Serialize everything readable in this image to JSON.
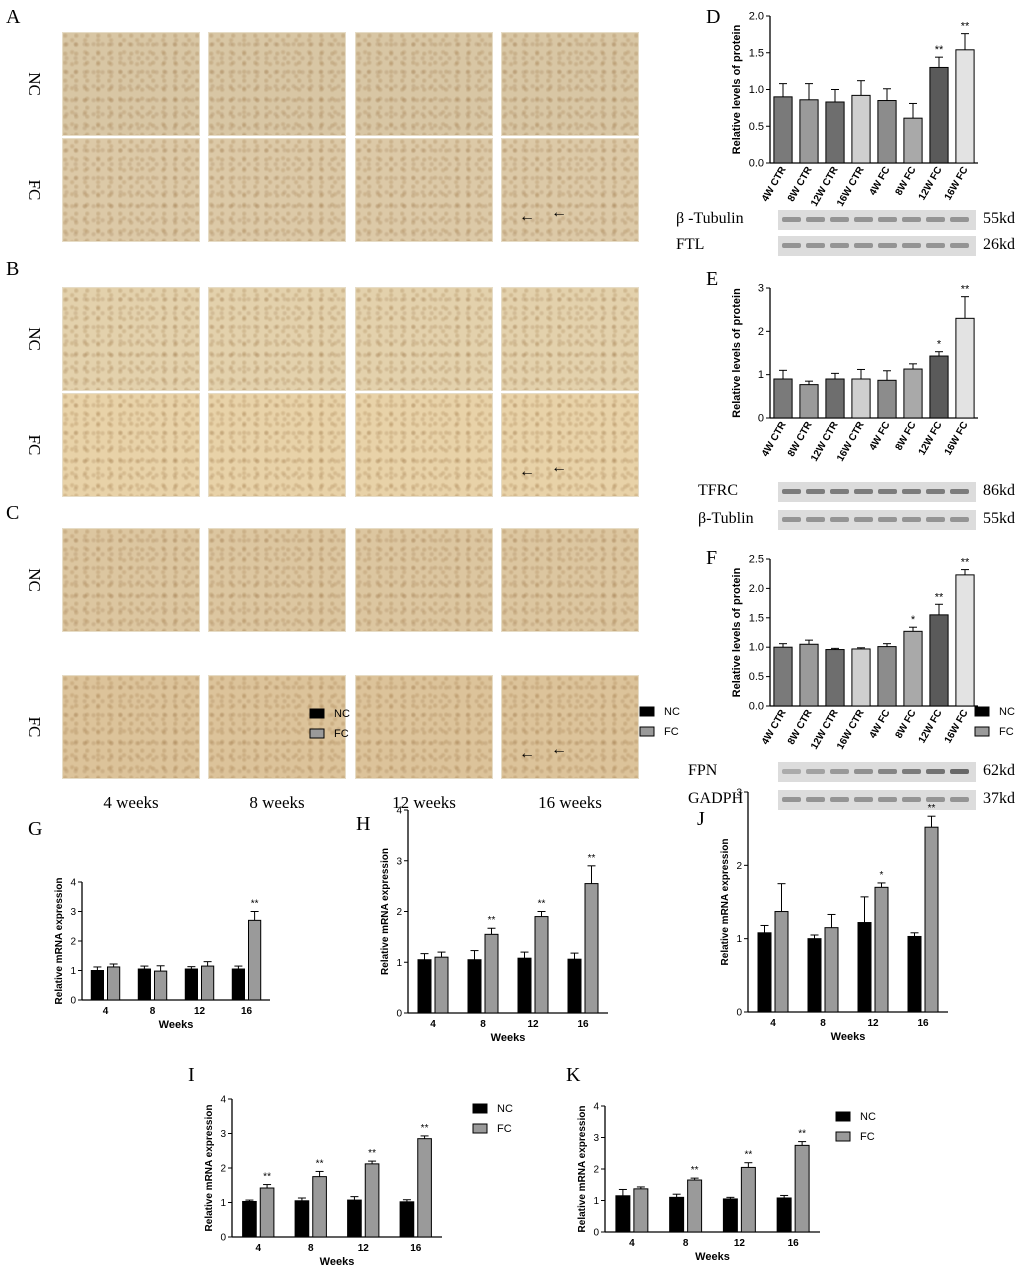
{
  "panel_letters": {
    "A": "A",
    "B": "B",
    "C": "C",
    "D": "D",
    "E": "E",
    "F": "F",
    "G": "G",
    "H": "H",
    "J": "J",
    "I": "I",
    "K": "K"
  },
  "histology": {
    "row_labels": [
      "NC",
      "FC"
    ],
    "col_labels": [
      "4 weeks",
      "8 weeks",
      "12 weeks",
      "16 weeks"
    ],
    "panels": [
      {
        "id": "A",
        "nc_color": "#d8c6a4",
        "fc_color": "#dcc9a7"
      },
      {
        "id": "B",
        "nc_color": "#e3d1ac",
        "fc_color": "#e8d2a8"
      },
      {
        "id": "C",
        "nc_color": "#dcc6a0",
        "fc_color": "#dcc39a"
      }
    ]
  },
  "blots": {
    "D": {
      "rows": [
        {
          "name": "β -Tubulin",
          "kd": "55kd"
        },
        {
          "name": "FTL",
          "kd": "26kd"
        }
      ]
    },
    "E": {
      "rows": [
        {
          "name": "TFRC",
          "kd": "86kd"
        },
        {
          "name": "β-Tublin",
          "kd": "55kd"
        }
      ]
    },
    "F": {
      "rows": [
        {
          "name": "FPN",
          "kd": "62kd"
        },
        {
          "name": "GADPH",
          "kd": "37kd"
        }
      ]
    }
  },
  "chart_data": [
    {
      "id": "D",
      "type": "bar",
      "ylabel": "Relative levels of protein",
      "ylim": [
        0,
        2.0
      ],
      "yticks": [
        "0.0",
        "0.5",
        "1.0",
        "1.5",
        "2.0"
      ],
      "categories": [
        "4W CTR",
        "8W CTR",
        "12W CTR",
        "16W CTR",
        "4W FC",
        "8W FC",
        "12W FC",
        "16W FC"
      ],
      "values": [
        0.9,
        0.86,
        0.83,
        0.92,
        0.85,
        0.61,
        1.3,
        1.54
      ],
      "errors": [
        0.18,
        0.22,
        0.17,
        0.2,
        0.16,
        0.2,
        0.14,
        0.22
      ],
      "marks": [
        "",
        "",
        "",
        "",
        "",
        "",
        "**",
        "**"
      ],
      "colors": [
        "#7a7a7a",
        "#9a9a9a",
        "#6e6e6e",
        "#cfcfcf",
        "#8c8c8c",
        "#a9a9a9",
        "#5a5a5a",
        "#e3e3e3"
      ]
    },
    {
      "id": "E",
      "type": "bar",
      "ylabel": "Relative levels of protein",
      "ylim": [
        0,
        3
      ],
      "yticks": [
        "0",
        "1",
        "2",
        "3"
      ],
      "categories": [
        "4W CTR",
        "8W CTR",
        "12W CTR",
        "16W CTR",
        "4W FC",
        "8W FC",
        "12W FC",
        "16W FC"
      ],
      "values": [
        0.9,
        0.77,
        0.9,
        0.9,
        0.87,
        1.13,
        1.43,
        2.3
      ],
      "errors": [
        0.2,
        0.08,
        0.13,
        0.22,
        0.22,
        0.12,
        0.1,
        0.5
      ],
      "marks": [
        "",
        "",
        "",
        "",
        "",
        "",
        "*",
        "**"
      ],
      "colors": [
        "#7a7a7a",
        "#9a9a9a",
        "#6e6e6e",
        "#cfcfcf",
        "#8c8c8c",
        "#a9a9a9",
        "#5a5a5a",
        "#e3e3e3"
      ]
    },
    {
      "id": "F",
      "type": "bar",
      "ylabel": "Relative levels of protein",
      "ylim": [
        0,
        2.5
      ],
      "yticks": [
        "0.0",
        "0.5",
        "1.0",
        "1.5",
        "2.0",
        "2.5"
      ],
      "categories": [
        "4W CTR",
        "8W CTR",
        "12W CTR",
        "16W CTR",
        "4W FC",
        "8W FC",
        "12W FC",
        "16W FC"
      ],
      "values": [
        1.0,
        1.05,
        0.96,
        0.97,
        1.01,
        1.27,
        1.55,
        2.23
      ],
      "errors": [
        0.06,
        0.07,
        0.02,
        0.02,
        0.05,
        0.07,
        0.18,
        0.09
      ],
      "marks": [
        "",
        "",
        "",
        "",
        "",
        "*",
        "**",
        "**"
      ],
      "colors": [
        "#7a7a7a",
        "#9a9a9a",
        "#6e6e6e",
        "#cfcfcf",
        "#8c8c8c",
        "#a9a9a9",
        "#5a5a5a",
        "#e3e3e3"
      ]
    },
    {
      "id": "G",
      "type": "bar",
      "xlabel": "Weeks",
      "ylabel": "Relative mRNA expression",
      "ylim": [
        0,
        4
      ],
      "yticks": [
        "0",
        "1",
        "2",
        "3",
        "4"
      ],
      "categories": [
        "4",
        "8",
        "12",
        "16"
      ],
      "series": [
        {
          "name": "NC",
          "values": [
            1.0,
            1.05,
            1.05,
            1.05
          ],
          "errors": [
            0.12,
            0.1,
            0.08,
            0.1
          ]
        },
        {
          "name": "FC",
          "values": [
            1.12,
            0.98,
            1.15,
            2.7
          ],
          "errors": [
            0.1,
            0.18,
            0.15,
            0.3
          ]
        }
      ],
      "marks": [
        "",
        "",
        "",
        "**"
      ]
    },
    {
      "id": "H",
      "type": "bar",
      "xlabel": "Weeks",
      "ylabel": "Relative mRNA expression",
      "ylim": [
        0,
        4
      ],
      "yticks": [
        "0",
        "1",
        "2",
        "3",
        "4"
      ],
      "categories": [
        "4",
        "8",
        "12",
        "16"
      ],
      "series": [
        {
          "name": "NC",
          "values": [
            1.05,
            1.05,
            1.08,
            1.06
          ],
          "errors": [
            0.12,
            0.18,
            0.12,
            0.12
          ]
        },
        {
          "name": "FC",
          "values": [
            1.1,
            1.55,
            1.9,
            2.55
          ],
          "errors": [
            0.1,
            0.12,
            0.1,
            0.35
          ]
        }
      ],
      "marks": [
        "",
        "**",
        "**",
        "**"
      ]
    },
    {
      "id": "J",
      "type": "bar",
      "xlabel": "Weeks",
      "ylabel": "Relative mRNA expression",
      "ylim": [
        0,
        3
      ],
      "yticks": [
        "0",
        "1",
        "2",
        "3"
      ],
      "categories": [
        "4",
        "8",
        "12",
        "16"
      ],
      "series": [
        {
          "name": "NC",
          "values": [
            1.08,
            1.0,
            1.22,
            1.03
          ],
          "errors": [
            0.1,
            0.05,
            0.35,
            0.05
          ]
        },
        {
          "name": "FC",
          "values": [
            1.37,
            1.15,
            1.7,
            2.52
          ],
          "errors": [
            0.38,
            0.18,
            0.06,
            0.15
          ]
        }
      ],
      "marks": [
        "",
        "",
        "*",
        "**"
      ]
    },
    {
      "id": "I",
      "type": "bar",
      "xlabel": "Weeks",
      "ylabel": "Relative mRNA expression",
      "ylim": [
        0,
        4
      ],
      "yticks": [
        "0",
        "1",
        "2",
        "3",
        "4"
      ],
      "categories": [
        "4",
        "8",
        "12",
        "16"
      ],
      "series": [
        {
          "name": "NC",
          "values": [
            1.03,
            1.05,
            1.07,
            1.02
          ],
          "errors": [
            0.04,
            0.08,
            0.1,
            0.06
          ]
        },
        {
          "name": "FC",
          "values": [
            1.42,
            1.75,
            2.12,
            2.85
          ],
          "errors": [
            0.1,
            0.15,
            0.08,
            0.08
          ]
        }
      ],
      "marks": [
        "**",
        "**",
        "**",
        "**"
      ]
    },
    {
      "id": "K",
      "type": "bar",
      "xlabel": "Weeks",
      "ylabel": "Relative mRNA expression",
      "ylim": [
        0,
        4
      ],
      "yticks": [
        "0",
        "1",
        "2",
        "3",
        "4"
      ],
      "categories": [
        "4",
        "8",
        "12",
        "16"
      ],
      "series": [
        {
          "name": "NC",
          "values": [
            1.15,
            1.1,
            1.05,
            1.08
          ],
          "errors": [
            0.2,
            0.1,
            0.05,
            0.08
          ]
        },
        {
          "name": "FC",
          "values": [
            1.37,
            1.65,
            2.05,
            2.75
          ],
          "errors": [
            0.06,
            0.06,
            0.15,
            0.12
          ]
        }
      ],
      "marks": [
        "",
        "**",
        "**",
        "**"
      ]
    }
  ]
}
